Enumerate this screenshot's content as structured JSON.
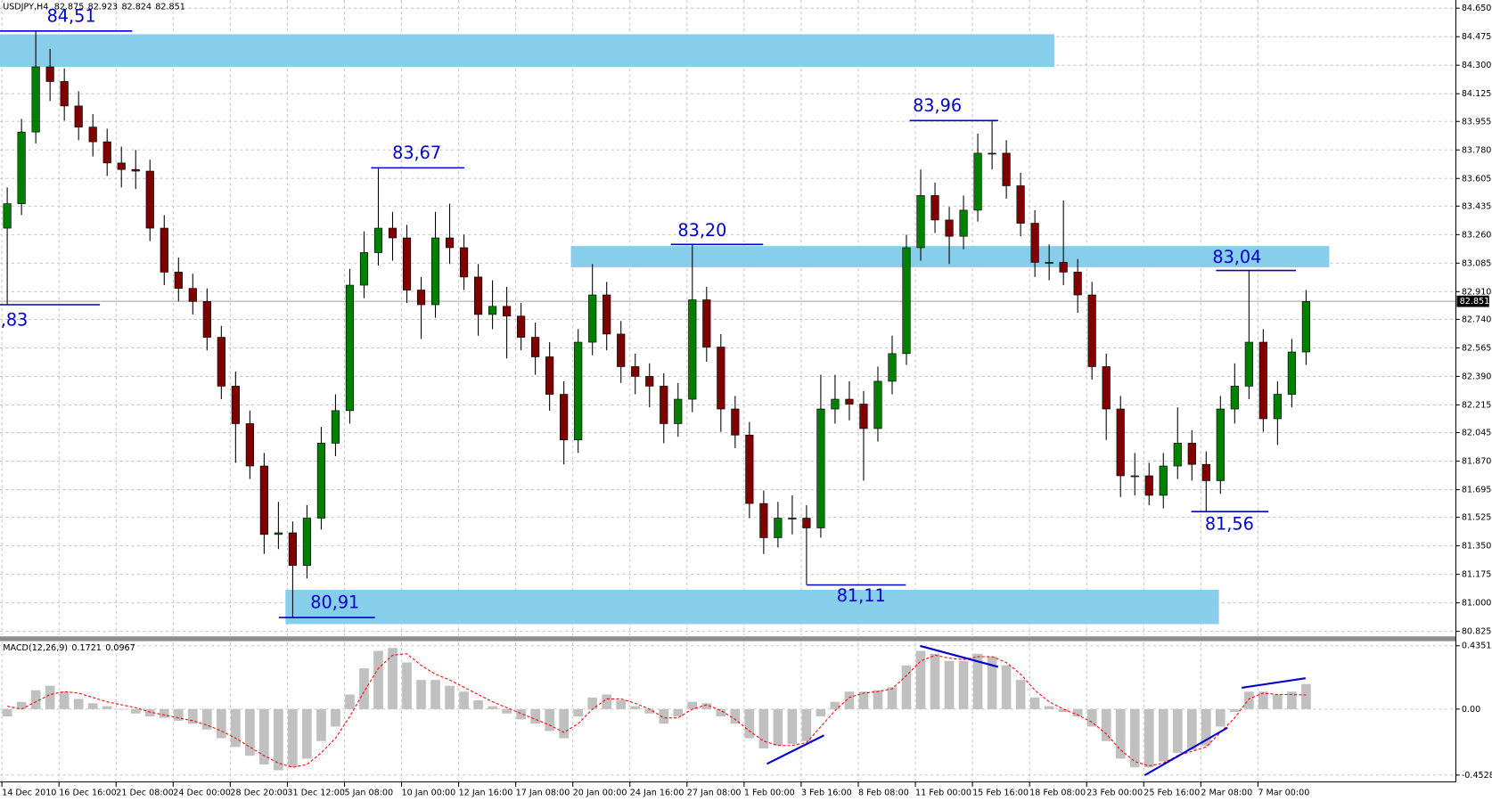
{
  "chart_data": [
    {
      "type": "candlestick",
      "title": "USDJPY,H4",
      "ohlc": [
        82.875,
        82.923,
        82.824,
        82.851
      ],
      "categories": [
        "14 Dec 2010",
        null,
        null,
        null,
        "16 Dec 16:00",
        null,
        null,
        null,
        "21 Dec 08:00",
        null,
        null,
        null,
        "24 Dec 00:00",
        null,
        null,
        null,
        "28 Dec 20:00",
        null,
        null,
        null,
        "31 Dec 12:00",
        null,
        null,
        null,
        "5 Jan 08:00",
        null,
        null,
        null,
        "10 Jan 00:00",
        null,
        null,
        null,
        "12 Jan 16:00",
        null,
        null,
        null,
        "17 Jan 08:00",
        null,
        null,
        null,
        "20 Jan 00:00",
        null,
        null,
        null,
        "24 Jan 16:00",
        null,
        null,
        null,
        "27 Jan 08:00",
        null,
        null,
        null,
        "1 Feb 00:00",
        null,
        null,
        null,
        "3 Feb 16:00",
        null,
        null,
        null,
        "8 Feb 08:00",
        null,
        null,
        null,
        "11 Feb 00:00",
        null,
        null,
        null,
        "15 Feb 16:00",
        null,
        null,
        null,
        "18 Feb 08:00",
        null,
        null,
        null,
        "23 Feb 00:00",
        null,
        null,
        null,
        "25 Feb 16:00",
        null,
        null,
        null,
        "2 Mar 08:00",
        null,
        null,
        null,
        "7 Mar 00:00",
        null,
        null,
        null
      ],
      "open": [
        83.3,
        83.45,
        83.89,
        84.29,
        84.2,
        84.05,
        83.92,
        83.83,
        83.7,
        83.66,
        83.65,
        83.3,
        83.03,
        82.93,
        82.85,
        82.63,
        82.33,
        82.1,
        81.84,
        81.42,
        81.43,
        81.23,
        81.52,
        81.98,
        82.18,
        82.95,
        83.15,
        83.3,
        83.24,
        82.92,
        82.83,
        83.24,
        83.18,
        83.0,
        82.77,
        82.82,
        82.76,
        82.63,
        82.51,
        82.28,
        82.0,
        82.6,
        82.89,
        82.65,
        82.45,
        82.39,
        82.33,
        82.1,
        82.25,
        82.86,
        82.57,
        82.19,
        82.03,
        81.61,
        81.4,
        81.52,
        81.52,
        81.46,
        82.19,
        82.25,
        82.22,
        82.07,
        82.36,
        82.53,
        83.18,
        83.5,
        83.35,
        83.25,
        83.41,
        83.76,
        83.76,
        83.56,
        83.33,
        83.09,
        83.09,
        83.03,
        82.89,
        82.45,
        82.19,
        81.78,
        81.78,
        81.66,
        81.84,
        81.98,
        81.85,
        81.75,
        82.19,
        82.33,
        82.6,
        82.13,
        82.28,
        82.54
      ],
      "high": [
        83.55,
        83.97,
        84.51,
        84.4,
        84.28,
        84.14,
        84.0,
        83.91,
        83.8,
        83.78,
        83.72,
        83.38,
        83.12,
        83.02,
        82.93,
        82.7,
        82.42,
        82.18,
        81.92,
        81.62,
        81.5,
        81.6,
        82.08,
        82.28,
        83.05,
        83.28,
        83.67,
        83.4,
        83.32,
        83.0,
        83.4,
        83.45,
        83.26,
        83.08,
        82.98,
        82.94,
        82.84,
        82.72,
        82.6,
        82.36,
        82.68,
        83.08,
        82.97,
        82.73,
        82.53,
        82.47,
        82.41,
        82.35,
        83.2,
        82.94,
        82.65,
        82.27,
        82.11,
        81.69,
        81.62,
        81.66,
        81.6,
        82.4,
        82.4,
        82.36,
        82.3,
        82.45,
        82.64,
        83.26,
        83.66,
        83.58,
        83.43,
        83.5,
        83.88,
        83.96,
        83.84,
        83.64,
        83.41,
        83.2,
        83.47,
        83.11,
        82.97,
        82.53,
        82.27,
        81.92,
        81.86,
        81.92,
        82.2,
        82.06,
        81.93,
        82.27,
        82.47,
        83.04,
        82.68,
        82.36,
        82.62,
        82.92
      ],
      "low": [
        82.83,
        83.38,
        83.82,
        84.08,
        83.96,
        83.84,
        83.74,
        83.62,
        83.55,
        83.54,
        83.22,
        82.95,
        82.85,
        82.77,
        82.55,
        82.25,
        81.86,
        81.76,
        81.3,
        81.33,
        80.91,
        81.15,
        81.45,
        81.9,
        82.1,
        82.87,
        83.07,
        83.1,
        82.84,
        82.62,
        82.75,
        83.08,
        82.92,
        82.64,
        82.68,
        82.5,
        82.55,
        82.4,
        82.18,
        81.85,
        81.92,
        82.52,
        82.55,
        82.35,
        82.28,
        82.2,
        81.98,
        82.02,
        82.17,
        82.48,
        82.05,
        81.95,
        81.52,
        81.3,
        81.34,
        81.42,
        81.11,
        81.4,
        82.1,
        82.12,
        81.75,
        81.99,
        82.28,
        82.46,
        83.1,
        83.27,
        83.08,
        83.17,
        83.34,
        83.66,
        83.48,
        83.25,
        83.0,
        82.98,
        82.95,
        82.78,
        82.37,
        82.0,
        81.65,
        81.66,
        81.6,
        81.58,
        81.76,
        81.75,
        81.56,
        81.67,
        82.1,
        82.25,
        82.05,
        81.97,
        82.2,
        82.46
      ],
      "close": [
        83.45,
        83.89,
        84.29,
        84.2,
        84.05,
        83.92,
        83.83,
        83.7,
        83.66,
        83.65,
        83.3,
        83.03,
        82.93,
        82.85,
        82.63,
        82.33,
        82.1,
        81.84,
        81.42,
        81.43,
        81.23,
        81.52,
        81.98,
        82.18,
        82.95,
        83.15,
        83.3,
        83.24,
        82.92,
        82.83,
        83.24,
        83.18,
        83.0,
        82.77,
        82.82,
        82.76,
        82.63,
        82.51,
        82.28,
        82.0,
        82.6,
        82.89,
        82.65,
        82.45,
        82.39,
        82.33,
        82.1,
        82.25,
        82.86,
        82.57,
        82.19,
        82.03,
        81.61,
        81.4,
        81.52,
        81.52,
        81.46,
        82.19,
        82.25,
        82.22,
        82.07,
        82.36,
        82.53,
        83.18,
        83.5,
        83.35,
        83.25,
        83.41,
        83.76,
        83.76,
        83.56,
        83.33,
        83.09,
        83.09,
        83.03,
        82.89,
        82.45,
        82.19,
        81.78,
        81.78,
        81.66,
        81.84,
        81.98,
        81.85,
        81.75,
        82.19,
        82.33,
        82.6,
        82.13,
        82.28,
        82.54,
        82.85
      ],
      "bull_color": "#008000",
      "bear_color": "#800000",
      "wick_color": "#000000",
      "ylim": [
        80.8,
        84.7
      ],
      "yticks": [
        {
          "value": 84.65,
          "label": "84.650"
        },
        84.475,
        {
          "value": 84.3,
          "label": "84.300"
        },
        84.125,
        83.955,
        {
          "value": 83.78,
          "label": "83.780"
        },
        83.605,
        83.435,
        {
          "value": 83.26,
          "label": "83.260"
        },
        83.085,
        {
          "value": 82.91,
          "label": "82.910"
        },
        {
          "value": 82.74,
          "label": "82.740"
        },
        82.565,
        {
          "value": 82.39,
          "label": "82.390"
        },
        82.215,
        82.045,
        {
          "value": 81.87,
          "label": "81.870"
        },
        81.695,
        81.525,
        {
          "value": 81.35,
          "label": "81.350"
        },
        81.175,
        {
          "value": 81,
          "label": "81.000"
        },
        80.825
      ],
      "grid": true,
      "zone_color": "#87ceeb",
      "zones": [
        {
          "low": 84.29,
          "high": 84.49
        },
        {
          "low": 83.06,
          "high": 83.19
        },
        {
          "low": 80.87,
          "high": 81.08
        }
      ],
      "level_color": "#0000cd",
      "levels": [
        {
          "value": 84.51,
          "label": "84,51"
        },
        {
          "value": 82.83,
          "label": ",83"
        },
        {
          "value": 83.67,
          "label": "83,67"
        },
        {
          "value": 80.91,
          "label": "80,91"
        },
        {
          "value": 83.2,
          "label": "83,20"
        },
        {
          "value": 81.11,
          "label": "81,11"
        },
        {
          "value": 83.96,
          "label": "83,96"
        },
        {
          "value": 83.04,
          "label": "83,04"
        },
        {
          "value": 81.56,
          "label": "81,56"
        }
      ]
    },
    {
      "type": "macd",
      "title": "MACD(12,26,9)",
      "histogram": [
        -0.05,
        0.05,
        0.13,
        0.16,
        0.12,
        0.07,
        0.04,
        0.02,
        0,
        -0.03,
        -0.05,
        -0.06,
        -0.08,
        -0.1,
        -0.14,
        -0.2,
        -0.26,
        -0.32,
        -0.38,
        -0.42,
        -0.4,
        -0.34,
        -0.22,
        -0.12,
        0.1,
        0.28,
        0.4,
        0.42,
        0.32,
        0.2,
        0.2,
        0.16,
        0.12,
        0.06,
        0.02,
        -0.03,
        -0.07,
        -0.1,
        -0.15,
        -0.2,
        -0.05,
        0.08,
        0.1,
        0.06,
        0.02,
        -0.03,
        -0.1,
        -0.05,
        0.05,
        0.04,
        -0.05,
        -0.1,
        -0.2,
        -0.27,
        -0.25,
        -0.24,
        -0.22,
        -0.05,
        0.05,
        0.12,
        0.12,
        0.13,
        0.15,
        0.3,
        0.4,
        0.38,
        0.33,
        0.33,
        0.38,
        0.36,
        0.3,
        0.2,
        0.08,
        0.02,
        -0.02,
        -0.05,
        -0.12,
        -0.22,
        -0.34,
        -0.4,
        -0.4,
        -0.36,
        -0.3,
        -0.28,
        -0.25,
        -0.12,
        -0.02,
        0.12,
        0.12,
        0.1,
        0.12,
        0.1721
      ],
      "signal": [
        0.02,
        0,
        0.05,
        0.1,
        0.12,
        0.11,
        0.08,
        0.05,
        0.03,
        0.01,
        -0.02,
        -0.04,
        -0.06,
        -0.08,
        -0.11,
        -0.15,
        -0.2,
        -0.26,
        -0.32,
        -0.37,
        -0.4,
        -0.38,
        -0.3,
        -0.2,
        -0.05,
        0.12,
        0.28,
        0.37,
        0.38,
        0.3,
        0.24,
        0.2,
        0.15,
        0.1,
        0.05,
        0.01,
        -0.03,
        -0.07,
        -0.11,
        -0.16,
        -0.1,
        0,
        0.07,
        0.07,
        0.04,
        0,
        -0.06,
        -0.06,
        0,
        0.03,
        -0.01,
        -0.07,
        -0.15,
        -0.22,
        -0.25,
        -0.25,
        -0.23,
        -0.12,
        -0.01,
        0.08,
        0.11,
        0.12,
        0.14,
        0.23,
        0.33,
        0.37,
        0.35,
        0.34,
        0.36,
        0.36,
        0.32,
        0.24,
        0.13,
        0.05,
        0,
        -0.04,
        -0.09,
        -0.17,
        -0.28,
        -0.36,
        -0.39,
        -0.37,
        -0.32,
        -0.29,
        -0.26,
        -0.16,
        -0.06,
        0.07,
        0.11,
        0.1,
        0.1,
        0.0967
      ],
      "histogram_color": "#c0c0c0",
      "signal_color": "#ff0000",
      "ylim": [
        -0.5,
        0.46
      ],
      "yticks": [
        0.4351,
        {
          "value": 0,
          "label": "0.00"
        },
        -0.4528
      ],
      "grid": true
    }
  ]
}
